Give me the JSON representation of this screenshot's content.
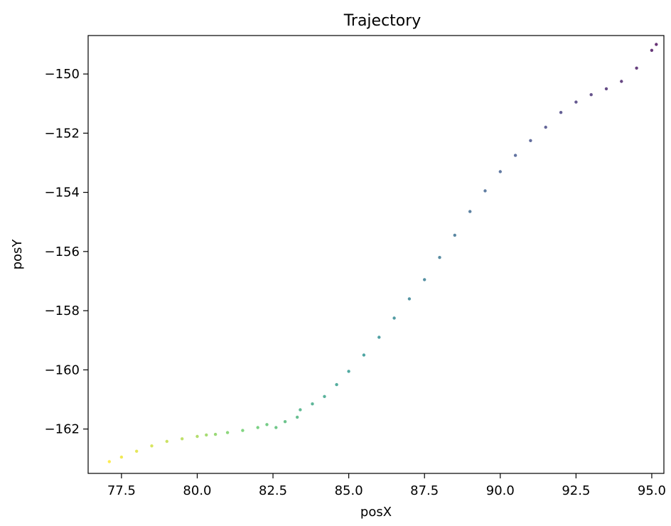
{
  "chart_data": {
    "type": "scatter",
    "title": "Trajectory",
    "xlabel": "posX",
    "ylabel": "posY",
    "xlim": [
      76.4,
      95.4
    ],
    "ylim": [
      -163.5,
      -148.7
    ],
    "xticks": [
      77.5,
      80.0,
      82.5,
      85.0,
      87.5,
      90.0,
      92.5,
      95.0
    ],
    "xtick_labels": [
      "77.5",
      "80.0",
      "82.5",
      "85.0",
      "87.5",
      "90.0",
      "92.5",
      "95.0"
    ],
    "yticks": [
      -150,
      -152,
      -154,
      -156,
      -158,
      -160,
      -162
    ],
    "ytick_labels": [
      "−150",
      "−152",
      "−154",
      "−156",
      "−158",
      "−160",
      "−162"
    ],
    "grid": false,
    "colormap": "viridis (reversed along path: purple at end, yellow at start)",
    "colors": {
      "start": "#fde725",
      "mid": "#21918c",
      "end": "#440154"
    },
    "points": [
      [
        77.1,
        -163.1
      ],
      [
        77.5,
        -162.95
      ],
      [
        78.0,
        -162.75
      ],
      [
        78.5,
        -162.57
      ],
      [
        79.0,
        -162.42
      ],
      [
        79.5,
        -162.33
      ],
      [
        80.0,
        -162.25
      ],
      [
        80.3,
        -162.2
      ],
      [
        80.6,
        -162.18
      ],
      [
        81.0,
        -162.12
      ],
      [
        81.5,
        -162.05
      ],
      [
        82.0,
        -161.95
      ],
      [
        82.3,
        -161.85
      ],
      [
        82.6,
        -161.95
      ],
      [
        82.9,
        -161.75
      ],
      [
        83.3,
        -161.6
      ],
      [
        83.4,
        -161.35
      ],
      [
        83.8,
        -161.15
      ],
      [
        84.2,
        -160.9
      ],
      [
        84.6,
        -160.5
      ],
      [
        85.0,
        -160.05
      ],
      [
        85.5,
        -159.5
      ],
      [
        86.0,
        -158.9
      ],
      [
        86.5,
        -158.25
      ],
      [
        87.0,
        -157.6
      ],
      [
        87.5,
        -156.95
      ],
      [
        88.0,
        -156.2
      ],
      [
        88.5,
        -155.45
      ],
      [
        89.0,
        -154.65
      ],
      [
        89.5,
        -153.95
      ],
      [
        90.0,
        -153.3
      ],
      [
        90.5,
        -152.75
      ],
      [
        91.0,
        -152.25
      ],
      [
        91.5,
        -151.8
      ],
      [
        92.0,
        -151.3
      ],
      [
        92.5,
        -150.95
      ],
      [
        93.0,
        -150.7
      ],
      [
        93.5,
        -150.5
      ],
      [
        94.0,
        -150.25
      ],
      [
        94.5,
        -149.8
      ],
      [
        95.0,
        -149.2
      ],
      [
        95.15,
        -149.0
      ]
    ]
  }
}
